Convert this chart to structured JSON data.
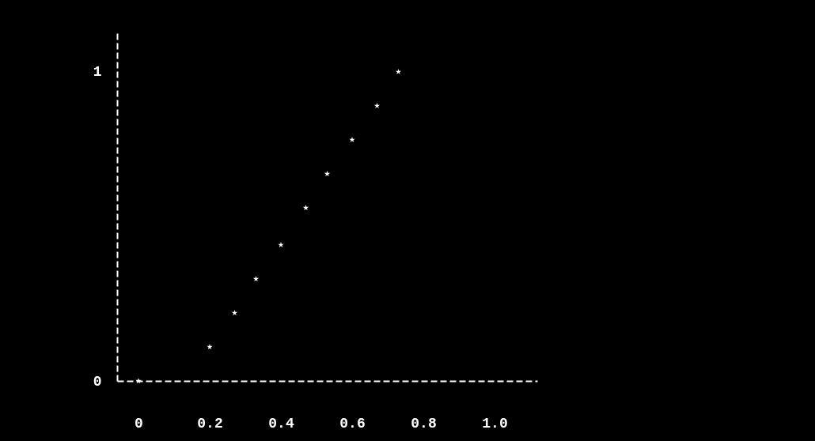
{
  "chart_data": {
    "type": "scatter",
    "x": [
      0,
      0.2,
      0.27,
      0.33,
      0.4,
      0.47,
      0.53,
      0.6,
      0.67,
      0.73
    ],
    "values": [
      0,
      0.11,
      0.22,
      0.33,
      0.44,
      0.56,
      0.67,
      0.78,
      0.89,
      1.0
    ],
    "color": "#ffffff",
    "marker": "star",
    "line_style": "dashed",
    "xlim": [
      -0.06,
      1.12
    ],
    "xticks": [
      0,
      0.2,
      0.4,
      0.6,
      0.8,
      {
        "value": 1,
        "label": "1.0"
      }
    ],
    "ylim": [
      0,
      1.13
    ],
    "yticks": [
      0,
      1
    ],
    "grid": false
  }
}
